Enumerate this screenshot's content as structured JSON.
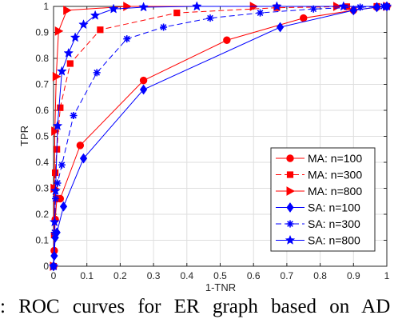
{
  "chart_data": {
    "type": "line",
    "title": "",
    "xlabel": "1-TNR",
    "ylabel": "TPR",
    "xlim": [
      0,
      1
    ],
    "ylim": [
      0,
      1
    ],
    "xticks": [
      "0",
      "0.1",
      "0.2",
      "0.3",
      "0.4",
      "0.5",
      "0.6",
      "0.7",
      "0.8",
      "0.9",
      "1"
    ],
    "yticks": [
      "0",
      "0.1",
      "0.2",
      "0.3",
      "0.4",
      "0.5",
      "0.6",
      "0.7",
      "0.8",
      "0.9",
      "1"
    ],
    "grid": true,
    "legend_position": "bottom-right",
    "series": [
      {
        "name": "MA: n=100",
        "color": "#ff0000",
        "dash": "solid",
        "marker": "circle",
        "x": [
          0,
          0.002,
          0.005,
          0.01,
          0.02,
          0.08,
          0.27,
          0.52,
          0.75,
          0.9,
          0.97,
          1
        ],
        "y": [
          0,
          0.06,
          0.18,
          0.26,
          0.26,
          0.465,
          0.715,
          0.87,
          0.955,
          0.985,
          0.997,
          1
        ]
      },
      {
        "name": "MA: n=300",
        "color": "#ff0000",
        "dash": "dashed",
        "marker": "square",
        "x": [
          0,
          0.002,
          0.005,
          0.01,
          0.02,
          0.05,
          0.14,
          0.37,
          0.67,
          0.88,
          0.97,
          1
        ],
        "y": [
          0,
          0.12,
          0.36,
          0.45,
          0.61,
          0.78,
          0.91,
          0.975,
          0.995,
          0.999,
          1,
          1
        ],
        "y_note_removed": true
      },
      {
        "name": "MA: n=800",
        "color": "#ff0000",
        "dash": "solid",
        "marker": "triangle-right",
        "x": [
          0,
          0.002,
          0.004,
          0.008,
          0.015,
          0.04,
          0.22,
          0.6,
          0.85,
          1
        ],
        "y": [
          0,
          0.3,
          0.52,
          0.73,
          0.905,
          0.985,
          1,
          1,
          1,
          1
        ]
      },
      {
        "name": "SA: n=100",
        "color": "#0000ff",
        "dash": "solid",
        "marker": "diamond",
        "x": [
          0,
          0.002,
          0.005,
          0.01,
          0.03,
          0.09,
          0.27,
          0.68,
          0.9,
          0.97,
          1
        ],
        "y": [
          0,
          0.04,
          0.11,
          0.13,
          0.23,
          0.415,
          0.68,
          0.92,
          0.985,
          0.997,
          1
        ]
      },
      {
        "name": "SA: n=300",
        "color": "#0000ff",
        "dash": "dashed",
        "marker": "asterisk",
        "x": [
          0,
          0.003,
          0.006,
          0.012,
          0.025,
          0.06,
          0.13,
          0.22,
          0.33,
          0.47,
          0.62,
          0.78,
          0.92,
          0.99,
          1
        ],
        "y": [
          0,
          0.13,
          0.26,
          0.32,
          0.39,
          0.58,
          0.745,
          0.875,
          0.92,
          0.955,
          0.975,
          0.99,
          0.997,
          1,
          1
        ]
      },
      {
        "name": "SA: n=800",
        "color": "#0000ff",
        "dash": "solid",
        "marker": "star",
        "x": [
          0,
          0.003,
          0.006,
          0.012,
          0.025,
          0.045,
          0.065,
          0.09,
          0.125,
          0.18,
          0.27,
          0.43,
          0.67,
          0.87,
          1
        ],
        "y": [
          0,
          0.17,
          0.29,
          0.54,
          0.75,
          0.82,
          0.88,
          0.93,
          0.965,
          0.99,
          0.997,
          1,
          1,
          1,
          1
        ]
      }
    ]
  },
  "caption": ": ROC curves for ER graph based on AD"
}
